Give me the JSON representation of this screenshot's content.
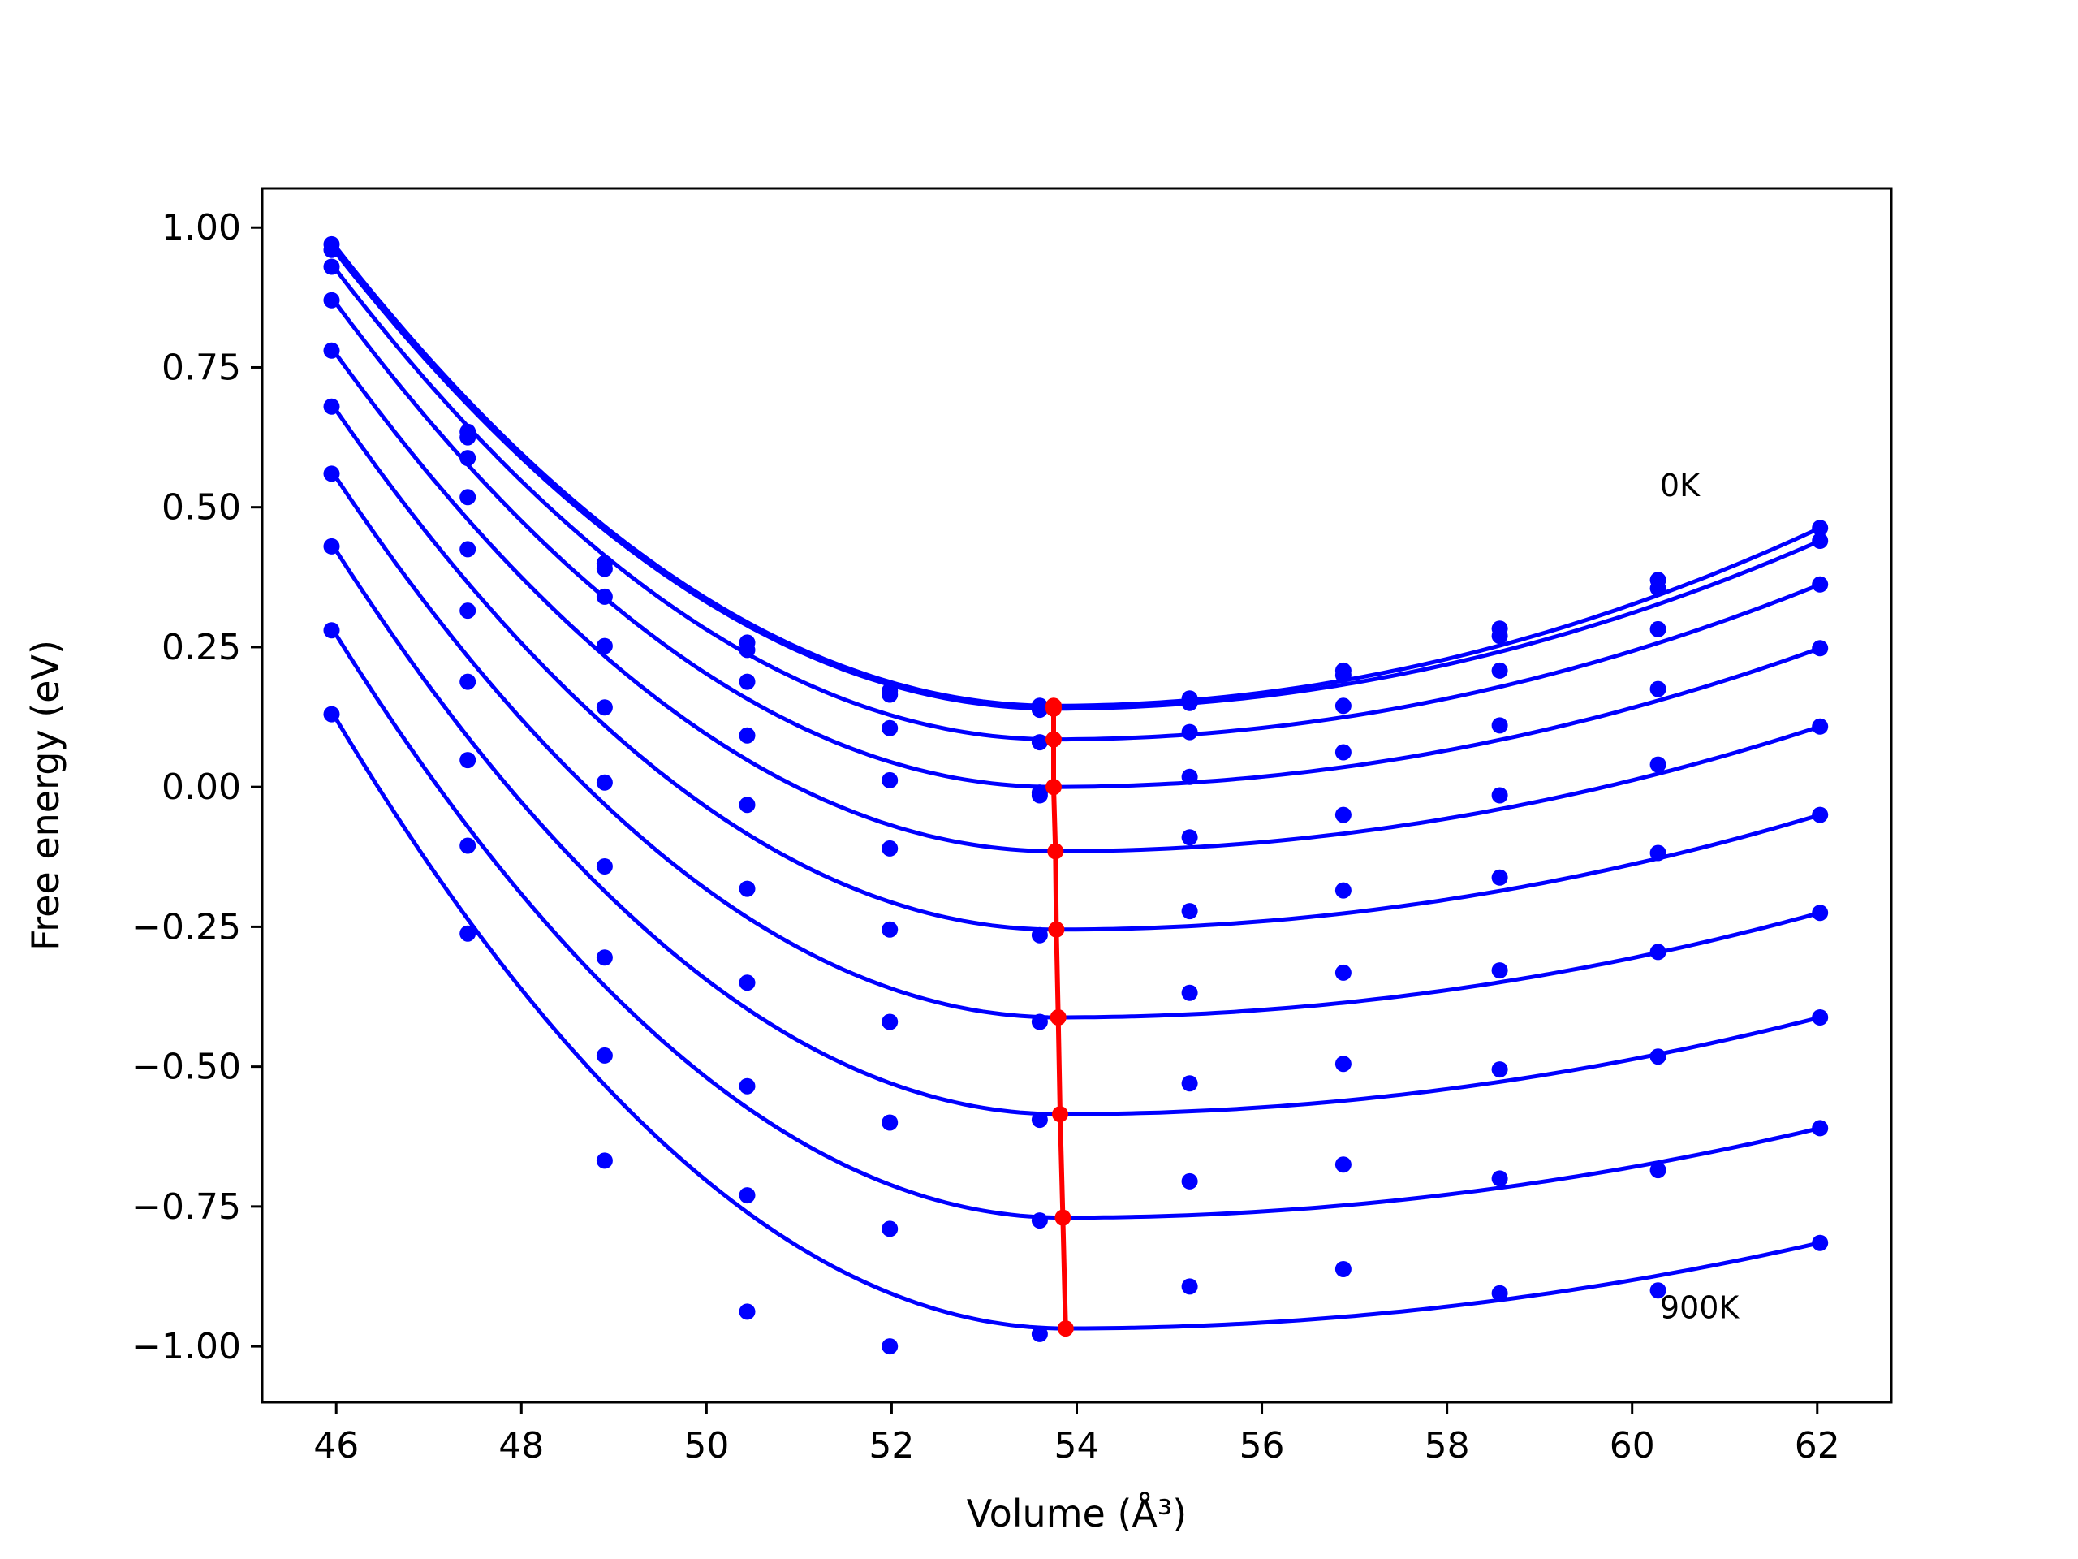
{
  "chart_data": {
    "type": "scatter",
    "xlabel": "Volume (Å³)",
    "ylabel": "Free energy (eV)",
    "xlim": [
      45.2,
      62.8
    ],
    "ylim": [
      -1.1,
      1.07
    ],
    "x_ticks": [
      46,
      48,
      50,
      52,
      54,
      56,
      58,
      60,
      62
    ],
    "x_tick_labels": [
      "46",
      "48",
      "50",
      "52",
      "54",
      "56",
      "58",
      "60",
      "62"
    ],
    "y_ticks": [
      1.0,
      0.75,
      0.5,
      0.25,
      0.0,
      -0.25,
      -0.5,
      -0.75,
      -1.0
    ],
    "y_tick_labels": [
      "1.00",
      "0.75",
      "0.50",
      "0.25",
      "0.00",
      "−0.25",
      "−0.50",
      "−0.75",
      "−1.00"
    ],
    "grid": false,
    "annotations": [
      {
        "text": "0K",
        "x": 60.3,
        "y": 0.52
      },
      {
        "text": "900K",
        "x": 60.3,
        "y": -0.95
      }
    ],
    "colors": {
      "curves": "#0000ff",
      "minima": "#ff0000",
      "axes": "#000000"
    },
    "volumes": [
      45.95,
      47.42,
      48.9,
      50.44,
      51.98,
      53.6,
      55.22,
      56.88,
      58.57,
      60.28,
      62.03
    ],
    "series": [
      {
        "points": [
          0.97,
          0.635,
          0.4,
          0.258,
          0.172,
          0.145,
          0.158,
          0.208,
          0.283,
          0.37,
          0.463
        ],
        "min": [
          53.75,
          0.145
        ]
      },
      {
        "points": [
          0.96,
          0.625,
          0.39,
          0.245,
          0.165,
          0.138,
          0.15,
          0.2,
          0.27,
          0.355,
          0.44
        ],
        "min": [
          53.75,
          0.14
        ]
      },
      {
        "points": [
          0.93,
          0.588,
          0.34,
          0.188,
          0.105,
          0.08,
          0.098,
          0.145,
          0.208,
          0.282,
          0.362
        ],
        "min": [
          53.75,
          0.085
        ]
      },
      {
        "points": [
          0.87,
          0.518,
          0.252,
          0.092,
          0.012,
          -0.01,
          0.018,
          0.062,
          0.11,
          0.175,
          0.248
        ],
        "min": [
          53.75,
          0.0
        ]
      },
      {
        "points": [
          0.78,
          0.425,
          0.142,
          -0.032,
          -0.11,
          -0.015,
          -0.09,
          -0.05,
          -0.015,
          0.04,
          0.108
        ],
        "min": [
          53.77,
          -0.115
        ]
      },
      {
        "points": [
          0.68,
          0.315,
          0.008,
          -0.182,
          -0.255,
          -0.265,
          -0.222,
          -0.185,
          -0.162,
          -0.118,
          -0.05
        ],
        "min": [
          53.78,
          -0.255
        ]
      },
      {
        "points": [
          0.56,
          0.188,
          -0.142,
          -0.35,
          -0.42,
          -0.42,
          -0.368,
          -0.332,
          -0.328,
          -0.295,
          -0.225
        ],
        "min": [
          53.8,
          -0.412
        ]
      },
      {
        "points": [
          0.43,
          0.048,
          -0.305,
          -0.535,
          -0.6,
          -0.595,
          -0.53,
          -0.495,
          -0.505,
          -0.482,
          -0.412
        ],
        "min": [
          53.82,
          -0.585
        ]
      },
      {
        "points": [
          0.28,
          -0.105,
          -0.48,
          -0.73,
          -0.79,
          -0.775,
          -0.705,
          -0.675,
          -0.7,
          -0.685,
          -0.61
        ],
        "min": [
          53.85,
          -0.77
        ]
      },
      {
        "points": [
          0.13,
          -0.262,
          -0.668,
          -0.938,
          -1.0,
          -0.978,
          -0.893,
          -0.862,
          -0.905,
          -0.9,
          -0.815
        ],
        "min": [
          53.88,
          -0.968
        ]
      }
    ]
  }
}
